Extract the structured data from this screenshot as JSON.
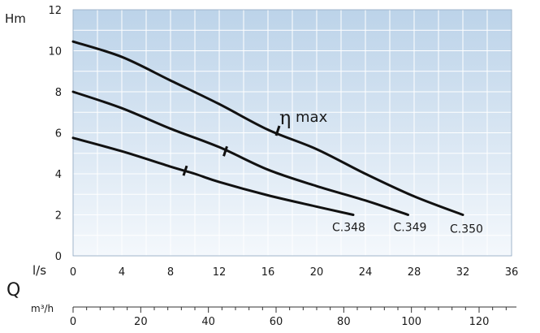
{
  "chart_data": {
    "type": "line",
    "title": "",
    "ylabel": "Hm",
    "xlabel": "l/s",
    "secondary_axis_title": "Q",
    "secondary_xlabel": "m³/h",
    "annotation": {
      "symbol": "η",
      "text": "max"
    },
    "x": {
      "min": 0,
      "max": 36,
      "ticks": [
        0,
        4,
        8,
        12,
        16,
        20,
        24,
        28,
        32,
        36
      ]
    },
    "y": {
      "min": 0,
      "max": 12,
      "ticks": [
        0,
        2,
        4,
        6,
        8,
        10,
        12
      ]
    },
    "secondary_x": {
      "min": 0,
      "max": 129.6,
      "ticks": [
        0,
        20,
        40,
        60,
        80,
        100,
        120
      ]
    },
    "grid": true,
    "colors": {
      "curve": "#111111",
      "grid": "#ffffff",
      "bg_top": "#bcd3e9",
      "bg_bottom": "#f4f8fc",
      "axis": "#333333"
    },
    "series": [
      {
        "name": "C.348",
        "points": [
          [
            0,
            5.75
          ],
          [
            4,
            5.1
          ],
          [
            8,
            4.35
          ],
          [
            10,
            4.0
          ],
          [
            12,
            3.6
          ],
          [
            16,
            2.95
          ],
          [
            20,
            2.4
          ],
          [
            23,
            2.0
          ]
        ],
        "bep": [
          9.2,
          4.15
        ]
      },
      {
        "name": "C.349",
        "points": [
          [
            0,
            8.0
          ],
          [
            4,
            7.2
          ],
          [
            8,
            6.2
          ],
          [
            12,
            5.3
          ],
          [
            16,
            4.2
          ],
          [
            20,
            3.4
          ],
          [
            24,
            2.7
          ],
          [
            27.5,
            2.0
          ]
        ],
        "bep": [
          12.5,
          5.1
        ]
      },
      {
        "name": "C.350",
        "points": [
          [
            0,
            10.45
          ],
          [
            4,
            9.7
          ],
          [
            8,
            8.55
          ],
          [
            12,
            7.4
          ],
          [
            16,
            6.15
          ],
          [
            20,
            5.2
          ],
          [
            24,
            4.0
          ],
          [
            28,
            2.9
          ],
          [
            32,
            2.0
          ]
        ],
        "bep": [
          16.8,
          6.1
        ]
      }
    ]
  }
}
